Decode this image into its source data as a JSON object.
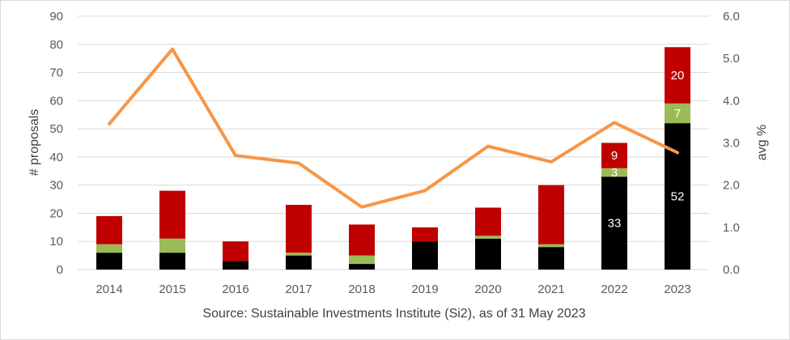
{
  "chart_data": {
    "type": "bar",
    "stacked": true,
    "categories": [
      "2014",
      "2015",
      "2016",
      "2017",
      "2018",
      "2019",
      "2020",
      "2021",
      "2022",
      "2023"
    ],
    "series": [
      {
        "values": [
          6,
          6,
          3,
          5,
          2,
          10,
          11,
          8,
          33,
          52
        ],
        "color": "#000000"
      },
      {
        "values": [
          3,
          5,
          0,
          1,
          3,
          0,
          1,
          1,
          3,
          7
        ],
        "color": "#9bbb59"
      },
      {
        "values": [
          10,
          17,
          7,
          17,
          11,
          5,
          10,
          21,
          9,
          20
        ],
        "color": "#c00000"
      }
    ],
    "line": {
      "values": [
        3.45,
        5.22,
        2.7,
        2.52,
        1.48,
        1.87,
        2.92,
        2.55,
        3.48,
        2.77
      ],
      "color": "#f79646",
      "axis": "right"
    },
    "data_labels": [
      {
        "category": "2022",
        "series": 0,
        "text": "33"
      },
      {
        "category": "2022",
        "series": 1,
        "text": "3"
      },
      {
        "category": "2022",
        "series": 2,
        "text": "9"
      },
      {
        "category": "2023",
        "series": 0,
        "text": "52"
      },
      {
        "category": "2023",
        "series": 1,
        "text": "7"
      },
      {
        "category": "2023",
        "series": 2,
        "text": "20"
      }
    ],
    "ylabel": "# proposals",
    "y2label": "avg %",
    "ylim": [
      0,
      90
    ],
    "yticks": [
      "0",
      "10",
      "20",
      "30",
      "40",
      "50",
      "60",
      "70",
      "80",
      "90"
    ],
    "y2lim": [
      0,
      6
    ],
    "y2ticks": [
      "0.0",
      "1.0",
      "2.0",
      "3.0",
      "4.0",
      "5.0",
      "6.0"
    ],
    "grid": true,
    "legend": "none"
  },
  "source": "Source:  Sustainable Investments Institute (Si2), as of 31 May 2023"
}
